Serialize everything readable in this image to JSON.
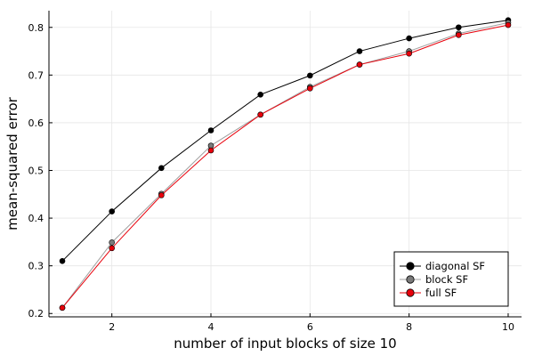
{
  "chart_data": {
    "type": "line",
    "xlabel": "number of input blocks of size 10",
    "ylabel": "mean-squared error",
    "xlim": [
      0.73,
      10.27
    ],
    "ylim": [
      0.193,
      0.835
    ],
    "x_ticks": [
      2,
      4,
      6,
      8,
      10
    ],
    "y_ticks": [
      0.2,
      0.3,
      0.4,
      0.5,
      0.6,
      0.7,
      0.8
    ],
    "x_tick_labels": [
      "2",
      "4",
      "6",
      "8",
      "10"
    ],
    "y_tick_labels": [
      "0.2",
      "0.3",
      "0.4",
      "0.5",
      "0.6",
      "0.7",
      "0.8"
    ],
    "grid": true,
    "legend_position": "bottom-right",
    "x": [
      1,
      2,
      3,
      4,
      5,
      6,
      7,
      8,
      9,
      10
    ],
    "series": [
      {
        "name": "diagonal SF",
        "color": "#000000",
        "marker_color": "#000000",
        "values": [
          0.31,
          0.414,
          0.505,
          0.584,
          0.659,
          0.699,
          0.75,
          0.777,
          0.8,
          0.815
        ]
      },
      {
        "name": "block SF",
        "color": "#a0a0a0",
        "marker_color": "#7a7a7a",
        "values": [
          0.212,
          0.349,
          0.451,
          0.552,
          0.617,
          0.675,
          0.722,
          0.75,
          0.787,
          0.81
        ]
      },
      {
        "name": "full SF",
        "color": "#e8000b",
        "marker_color": "#e8000b",
        "values": [
          0.212,
          0.337,
          0.448,
          0.542,
          0.617,
          0.672,
          0.722,
          0.745,
          0.784,
          0.805
        ]
      }
    ]
  }
}
